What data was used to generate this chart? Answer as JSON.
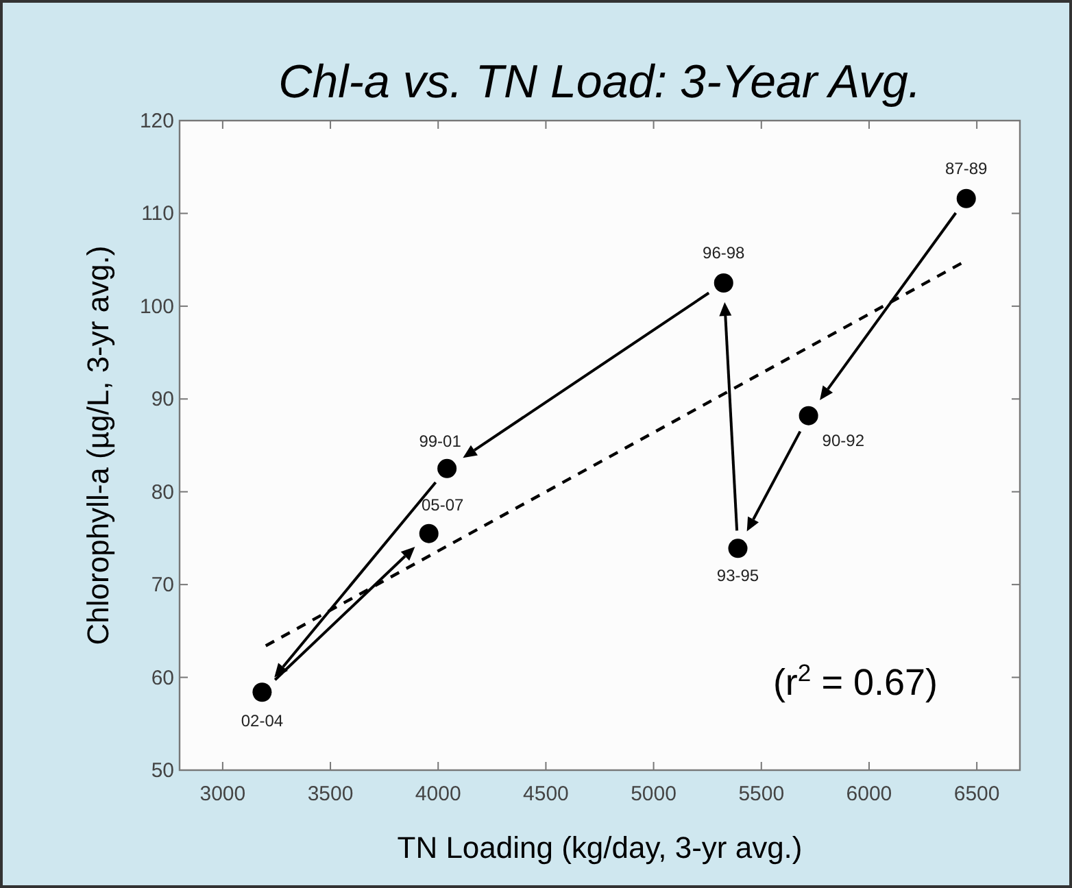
{
  "chart_data": {
    "type": "scatter",
    "title": "Chl-a vs. TN Load: 3-Year Avg.",
    "xlabel": "TN Loading (kg/day, 3-yr avg.)",
    "ylabel": "Chlorophyll-a (µg/L, 3-yr avg.)",
    "xlim": [
      2800,
      6700
    ],
    "xticks": [
      3000,
      3500,
      4000,
      4500,
      5000,
      5500,
      6000,
      6500
    ],
    "ylim": [
      50,
      120
    ],
    "yticks": [
      50,
      60,
      70,
      80,
      90,
      100,
      110,
      120
    ],
    "grid": false,
    "series": [
      {
        "color": "#000000",
        "marker": "circle",
        "x": [
          6451,
          5719,
          5391,
          5325,
          4041,
          3183,
          3957
        ],
        "values": [
          111.6,
          88.2,
          73.9,
          102.5,
          82.5,
          58.4,
          75.5
        ]
      },
      {
        "type": "line",
        "color": "#000000",
        "marker": "none",
        "line_style": "dashed",
        "x": [
          3200,
          6450
        ],
        "values": [
          63.4,
          104.9
        ]
      }
    ],
    "annotations": [
      {
        "text": "87-89",
        "x": 6451,
        "y": 111.6
      },
      {
        "text": "90-92",
        "x": 5719,
        "y": 88.2
      },
      {
        "text": "93-95",
        "x": 5391,
        "y": 73.9
      },
      {
        "text": "96-98",
        "x": 5325,
        "y": 102.5
      },
      {
        "text": "99-01",
        "x": 4041,
        "y": 82.5
      },
      {
        "text": "02-04",
        "x": 3183,
        "y": 58.4
      },
      {
        "text": "05-07",
        "x": 3957,
        "y": 75.5
      },
      "(r$^{2}$ = 0.67)"
    ]
  }
}
